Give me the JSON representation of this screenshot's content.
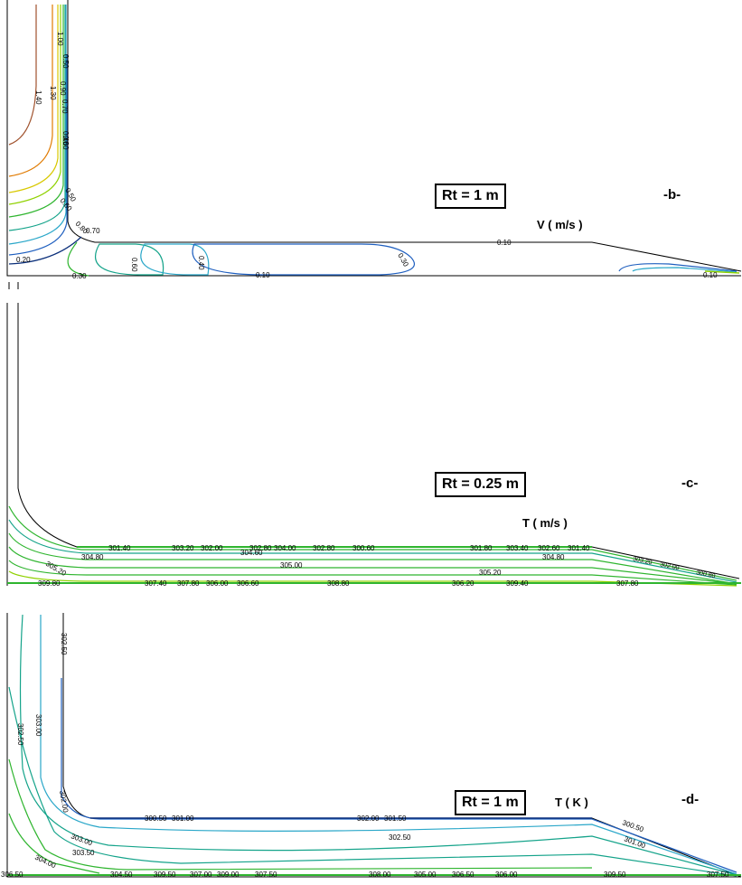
{
  "panels": [
    {
      "id": "b",
      "tag": "-b-",
      "rt_label": "Rt = 1 m",
      "variable_label": "V ( m/s )",
      "contour_labels": [
        "1.40",
        "1.30",
        "1.00",
        "0.90",
        "0.70",
        "0.60",
        "0.50",
        "0.40",
        "0.80",
        "0.70",
        "0.60",
        "0.50",
        "0.30",
        "0.20",
        "0.60",
        "0.40",
        "0.30",
        "0.10",
        "0.10",
        "0.10"
      ]
    },
    {
      "id": "c",
      "tag": "-c-",
      "rt_label": "Rt = 0.25 m",
      "variable_label": "T ( m/s )",
      "contour_labels": [
        "301.40",
        "303.20",
        "302.00",
        "302.80",
        "304.00",
        "302.80",
        "300.60",
        "301.80",
        "303.40",
        "302.60",
        "301.40",
        "304.60",
        "304.80",
        "304.80",
        "305.00",
        "305.20",
        "305.20",
        "307.40",
        "307.80",
        "306.00",
        "306.60",
        "308.80",
        "309.80",
        "309.40",
        "306.20",
        "307.80",
        "303.20",
        "302.00",
        "300.80"
      ]
    },
    {
      "id": "d",
      "tag": "-d-",
      "rt_label": "Rt = 1 m",
      "variable_label": "T ( K )",
      "contour_labels": [
        "302.50",
        "303.00",
        "302.50",
        "302.00",
        "300.50",
        "301.00",
        "302.00",
        "301.50",
        "302.50",
        "303.00",
        "303.50",
        "304.00",
        "304.50",
        "309.50",
        "307.00",
        "309.00",
        "307.50",
        "308.00",
        "305.00",
        "306.50",
        "306.00",
        "309.50",
        "307.50",
        "300.50",
        "301.00",
        "306.50"
      ]
    }
  ],
  "colors": {
    "line_black": "#000000",
    "brown": "#a0522d",
    "orange": "#e07a00",
    "yellow": "#d8c800",
    "lime": "#8fd100",
    "green": "#2fb52f",
    "teal": "#14a38a",
    "cyan": "#2aa7c9",
    "blue": "#1f5fbf",
    "navy": "#0b2f7a"
  }
}
